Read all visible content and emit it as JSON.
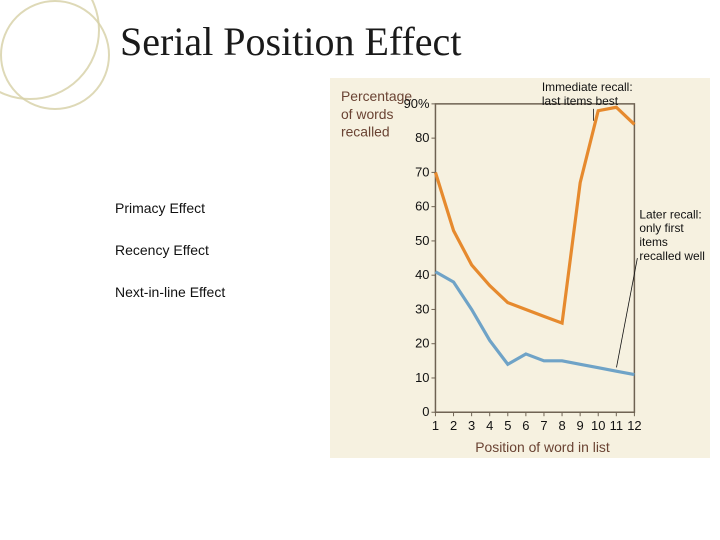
{
  "slide": {
    "title": "Serial Position Effect",
    "background_color": "#ffffff",
    "decoration_color": "#d6cfa5",
    "title_color": "#1a1a1a",
    "title_fontsize": 40,
    "title_font": "Times New Roman"
  },
  "left_list": {
    "item1": "Primacy Effect",
    "item2": "Recency Effect",
    "item3": "Next-in-line Effect",
    "fontsize": 14,
    "color": "#111111"
  },
  "chart": {
    "type": "line",
    "background_color": "#f6f1e0",
    "plot_border_color": "#6e6252",
    "plot_border_width": 1.5,
    "y_axis": {
      "label_line1": "Percentage",
      "label_line2": "of words",
      "label_line3": "recalled",
      "label_color": "#6a4333",
      "label_fontsize": 14,
      "ylim": [
        0,
        90
      ],
      "ticks": [
        0,
        10,
        20,
        30,
        40,
        50,
        60,
        70,
        80,
        90
      ],
      "top_tick_label": "90%"
    },
    "x_axis": {
      "label": "Position of word in list",
      "label_color": "#6a4333",
      "label_fontsize": 14,
      "categories": [
        1,
        2,
        3,
        4,
        5,
        6,
        7,
        8,
        9,
        10,
        11,
        12
      ]
    },
    "series": {
      "immediate": {
        "label_line1": "Immediate recall:",
        "label_line2": "last items best",
        "color": "#e68a2e",
        "values": [
          70,
          53,
          43,
          37,
          32,
          30,
          28,
          26,
          67,
          88,
          89,
          84
        ],
        "line_width": 3.2
      },
      "later": {
        "label_line1": "Later recall:",
        "label_line2": "only first",
        "label_line3": "items",
        "label_line4": "recalled well",
        "color": "#6fa3c7",
        "values": [
          41,
          38,
          30,
          21,
          14,
          17,
          15,
          15,
          14,
          13,
          12,
          11
        ],
        "line_width": 3.2
      }
    },
    "annotation_fontsize": 12,
    "annotation_color": "#111111",
    "tick_fontsize": 13
  }
}
